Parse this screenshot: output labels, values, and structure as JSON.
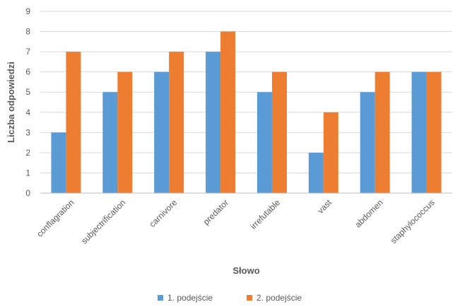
{
  "chart_data": {
    "type": "bar",
    "title": "",
    "xlabel": "Słowo",
    "ylabel": "Liczba odpowiedzi",
    "ylim": [
      0,
      9
    ],
    "yticks": [
      0,
      1,
      2,
      3,
      4,
      5,
      6,
      7,
      8,
      9
    ],
    "grid": true,
    "legend_position": "bottom",
    "categories": [
      "conflagration",
      "subjectrification",
      "carnivore",
      "predator",
      "irrefutable",
      "vast",
      "abdomen",
      "staphylococcus"
    ],
    "series": [
      {
        "name": "1. podejście",
        "color": "#5b9bd5",
        "values": [
          3,
          5,
          6,
          7,
          5,
          2,
          5,
          6
        ]
      },
      {
        "name": "2. podejście",
        "color": "#ed7d31",
        "values": [
          7,
          6,
          7,
          8,
          6,
          4,
          6,
          6
        ]
      }
    ]
  }
}
